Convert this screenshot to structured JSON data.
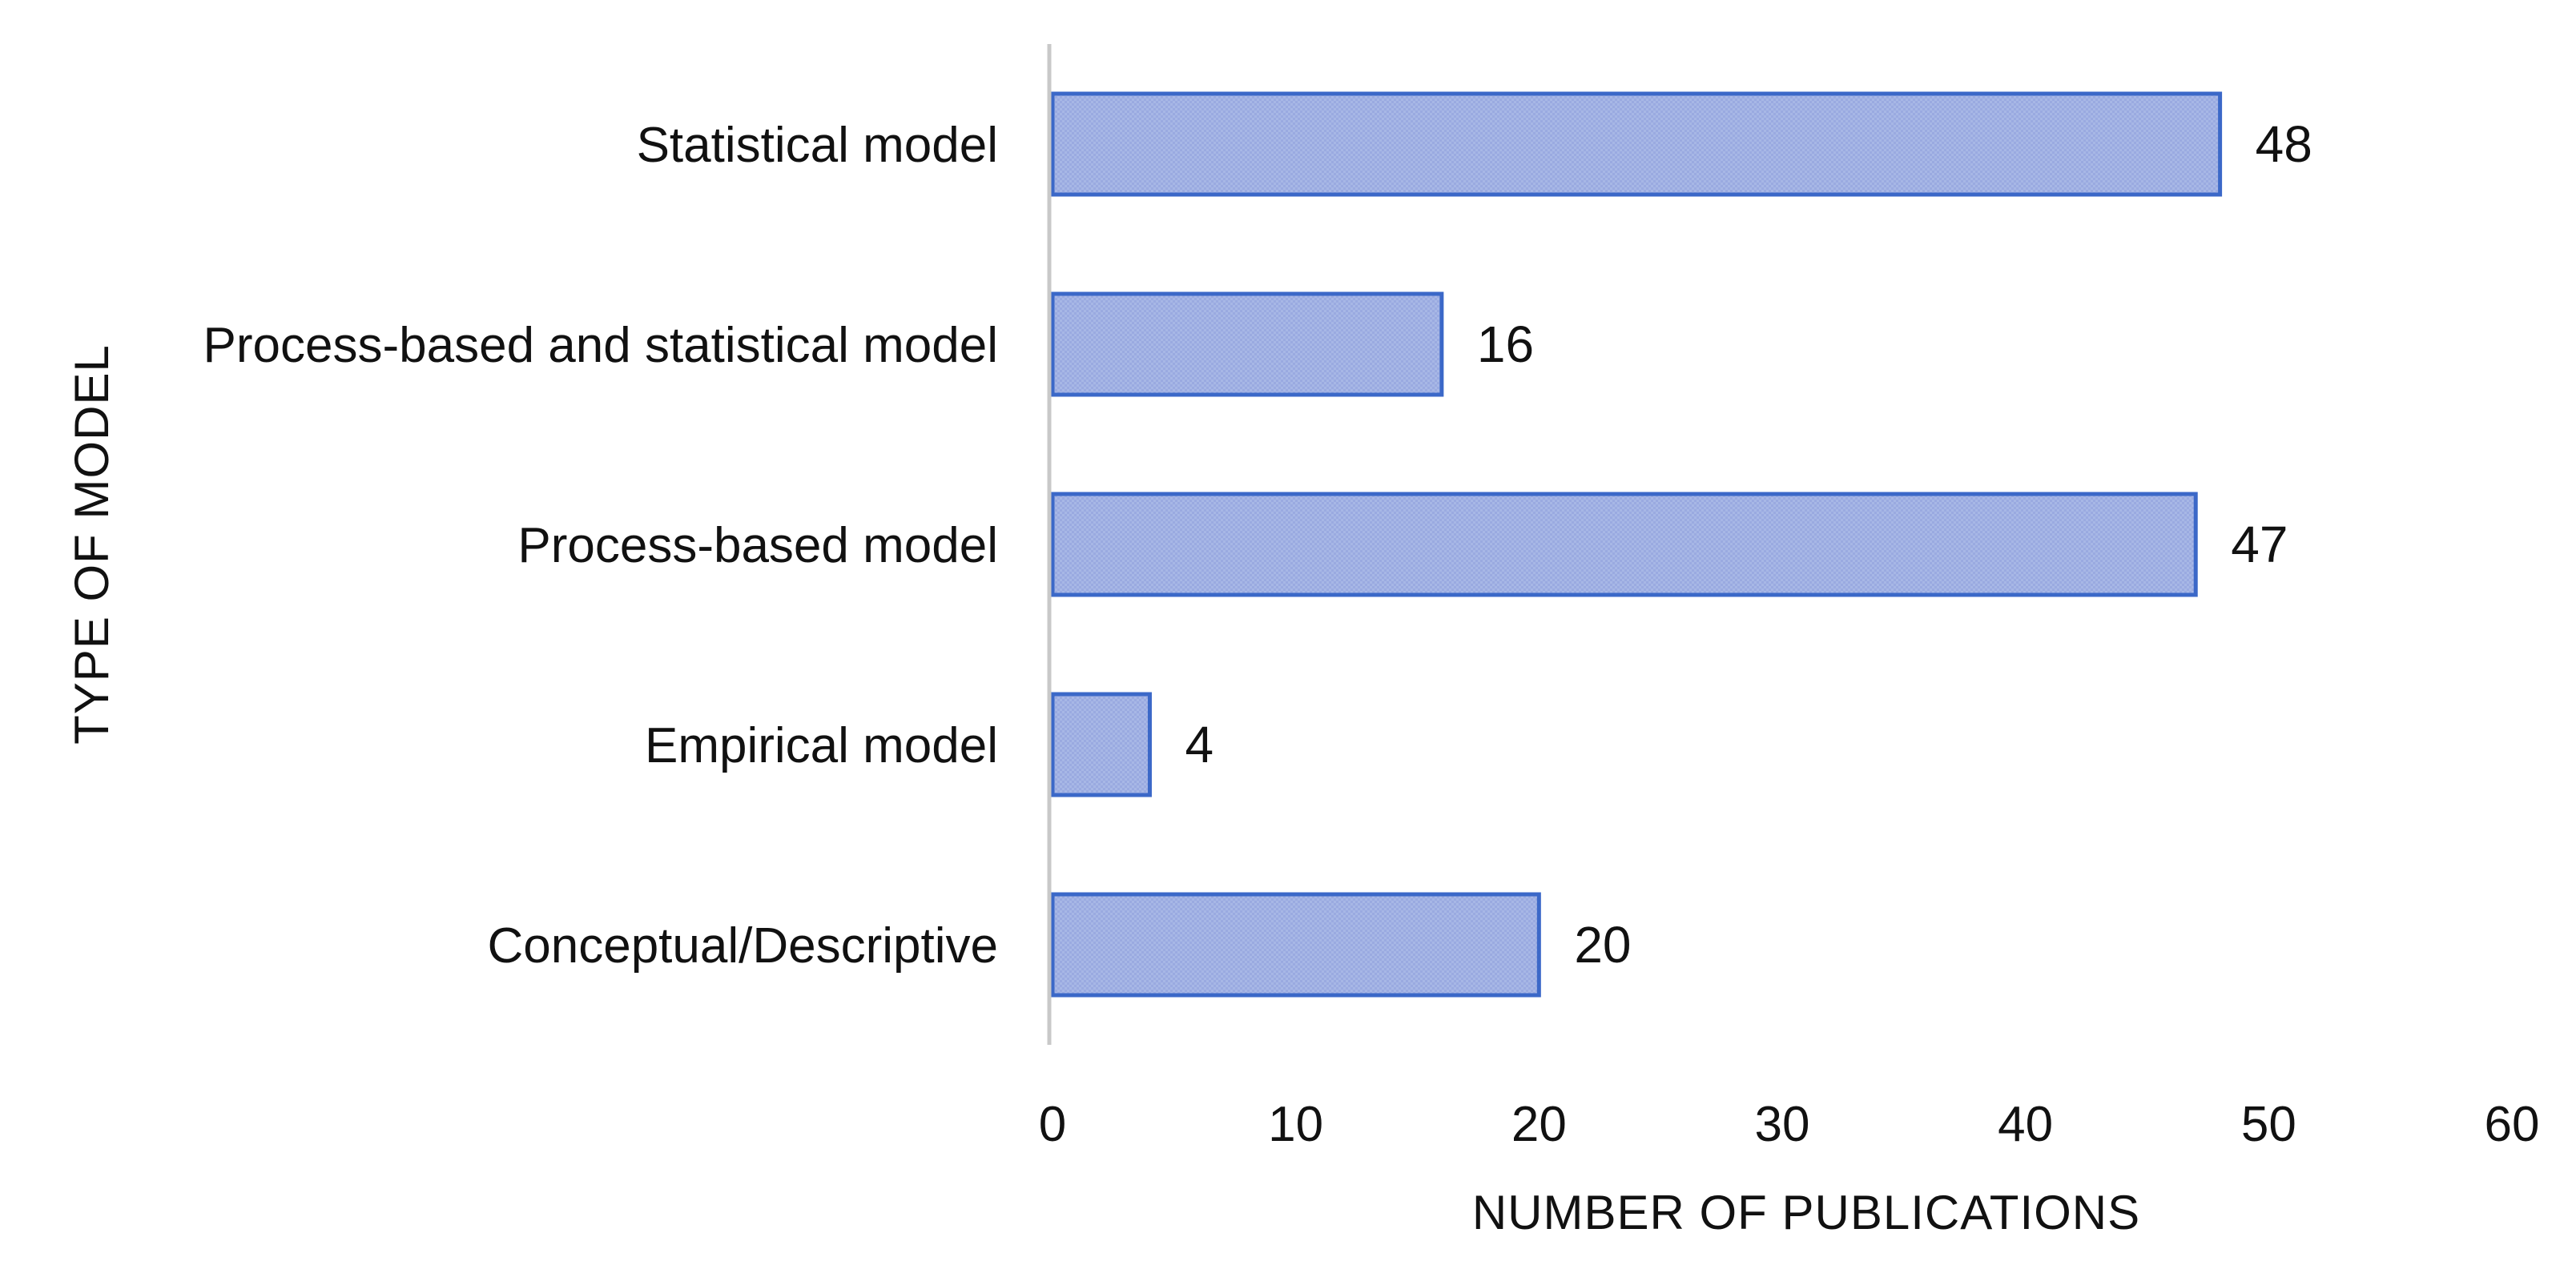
{
  "chart_data": {
    "type": "bar",
    "orientation": "horizontal",
    "categories": [
      "Statistical model",
      "Process-based and statistical model",
      "Process-based model",
      "Empirical model",
      "Conceptual/Descriptive"
    ],
    "values": [
      48,
      16,
      47,
      4,
      20
    ],
    "data_labels": [
      "48",
      "16",
      "47",
      "4",
      "20"
    ],
    "xlabel": "NUMBER OF PUBLICATIONS",
    "ylabel": "TYPE OF MODEL",
    "xlim": [
      0,
      60
    ],
    "x_ticks": [
      "0",
      "10",
      "20",
      "30",
      "40",
      "50",
      "60"
    ],
    "grid": false,
    "legend": "none",
    "colors": {
      "bar_fill": "#9aaae0",
      "bar_fill_light": "#b3c0ea",
      "bar_stroke": "#3b68c8",
      "axis_line": "#c8c8c8",
      "text": "#111111"
    }
  }
}
